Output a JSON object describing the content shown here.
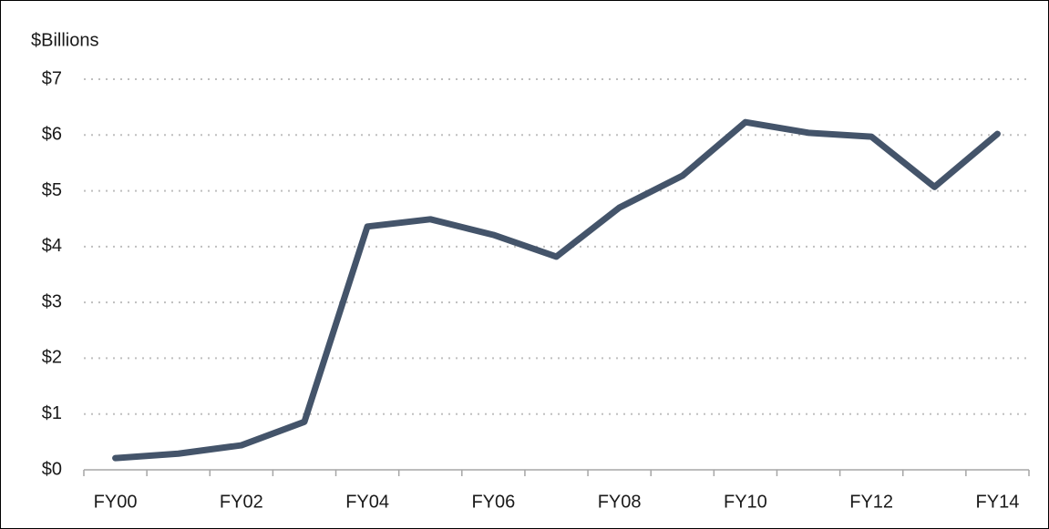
{
  "chart_data": {
    "type": "line",
    "y_axis_label": "$Billions",
    "categories": [
      "FY00",
      null,
      "FY02",
      null,
      "FY04",
      null,
      "FY06",
      null,
      "FY08",
      null,
      "FY10",
      null,
      "FY12",
      null,
      "FY14"
    ],
    "series": [
      {
        "name": null,
        "color": "#44546a",
        "values": [
          0.21,
          0.29,
          0.44,
          0.86,
          4.36,
          4.49,
          4.21,
          3.82,
          4.7,
          5.27,
          6.23,
          6.04,
          5.97,
          5.07,
          6.02
        ]
      }
    ],
    "ylim": [
      0,
      7
    ],
    "yticks": [
      {
        "value": 0,
        "label": "$0"
      },
      {
        "value": 1,
        "label": "$1"
      },
      {
        "value": 2,
        "label": "$2"
      },
      {
        "value": 3,
        "label": "$3"
      },
      {
        "value": 4,
        "label": "$4"
      },
      {
        "value": 5,
        "label": "$5"
      },
      {
        "value": 6,
        "label": "$6"
      },
      {
        "value": 7,
        "label": "$7"
      }
    ],
    "grid": true
  }
}
